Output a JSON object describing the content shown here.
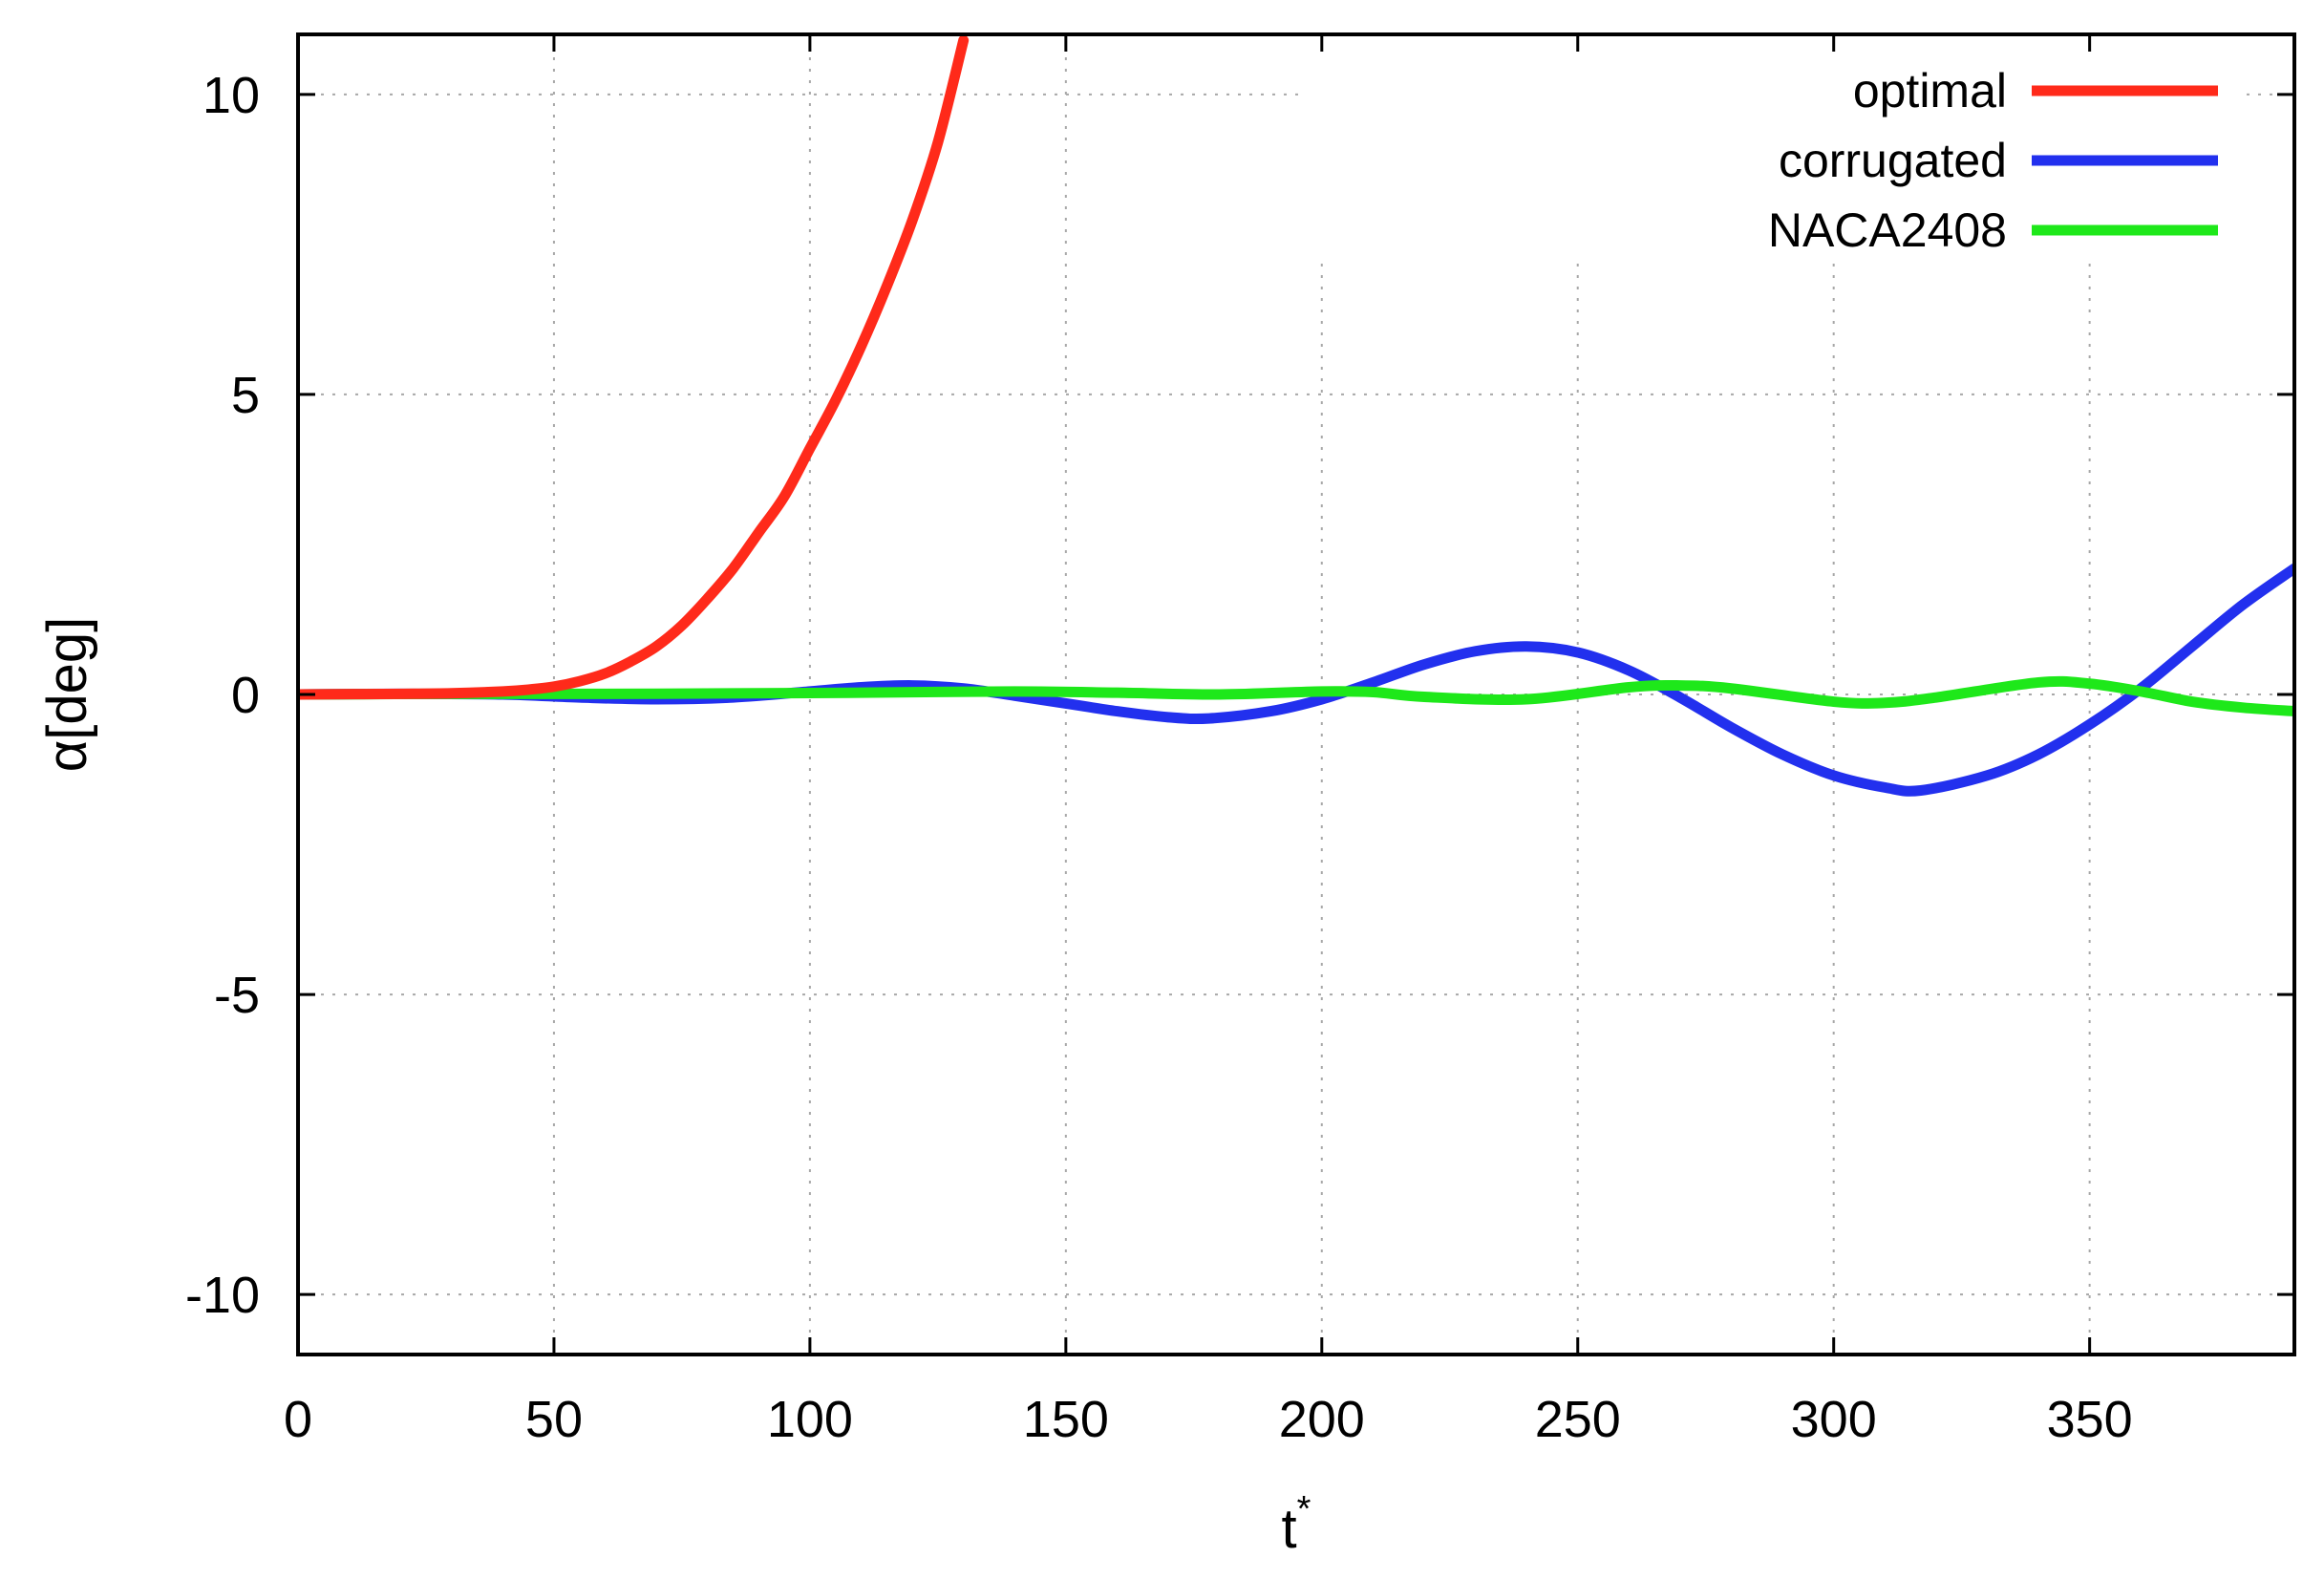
{
  "chart_data": {
    "type": "line",
    "title": "",
    "xlabel": "t",
    "xlabel_superscript": "*",
    "ylabel": "α[deg]",
    "xlim": [
      0,
      390
    ],
    "ylim": [
      -11,
      11
    ],
    "xticks": [
      0,
      50,
      100,
      150,
      200,
      250,
      300,
      350
    ],
    "yticks": [
      -10,
      -5,
      0,
      5,
      10
    ],
    "xtick_labels": [
      "0",
      "50",
      "100",
      "150",
      "200",
      "250",
      "300",
      "350"
    ],
    "ytick_labels": [
      "-10",
      "-5",
      "0",
      "5",
      "10"
    ],
    "grid": true,
    "legend_position": "top-right",
    "series": [
      {
        "name": "optimal",
        "color": "#ff2a1a",
        "x": [
          0,
          20,
          30,
          40,
          45,
          50,
          55,
          60,
          65,
          70,
          75,
          80,
          85,
          90,
          95,
          100,
          105,
          110,
          115,
          120,
          125,
          130
        ],
        "y": [
          0,
          0.01,
          0.02,
          0.05,
          0.08,
          0.13,
          0.22,
          0.35,
          0.55,
          0.8,
          1.15,
          1.6,
          2.1,
          2.7,
          3.3,
          4.1,
          4.9,
          5.8,
          6.8,
          7.9,
          9.2,
          10.9
        ]
      },
      {
        "name": "corrugated",
        "color": "#2230ee",
        "x": [
          0,
          20,
          40,
          55,
          70,
          85,
          100,
          110,
          120,
          130,
          140,
          150,
          160,
          170,
          178,
          190,
          200,
          210,
          220,
          230,
          240,
          250,
          260,
          270,
          280,
          290,
          300,
          310,
          317,
          330,
          340,
          350,
          360,
          370,
          380,
          390
        ],
        "y": [
          0,
          0.01,
          0.0,
          -0.05,
          -0.08,
          -0.05,
          0.05,
          0.12,
          0.15,
          0.1,
          -0.02,
          -0.15,
          -0.28,
          -0.38,
          -0.4,
          -0.28,
          -0.08,
          0.2,
          0.5,
          0.72,
          0.8,
          0.7,
          0.4,
          -0.05,
          -0.55,
          -1.0,
          -1.35,
          -1.55,
          -1.6,
          -1.35,
          -1.0,
          -0.5,
          0.1,
          0.8,
          1.5,
          2.1
        ]
      },
      {
        "name": "NACA2408",
        "color": "#1ee81a",
        "x": [
          0,
          30,
          60,
          90,
          110,
          140,
          160,
          180,
          200,
          210,
          220,
          240,
          260,
          270,
          280,
          300,
          310,
          320,
          340,
          350,
          360,
          370,
          380,
          390
        ],
        "y": [
          0,
          0.01,
          0.01,
          0.02,
          0.03,
          0.05,
          0.03,
          0.0,
          0.05,
          0.04,
          -0.04,
          -0.08,
          0.12,
          0.15,
          0.1,
          -0.12,
          -0.14,
          -0.05,
          0.2,
          0.18,
          0.05,
          -0.12,
          -0.22,
          -0.28
        ]
      }
    ]
  }
}
